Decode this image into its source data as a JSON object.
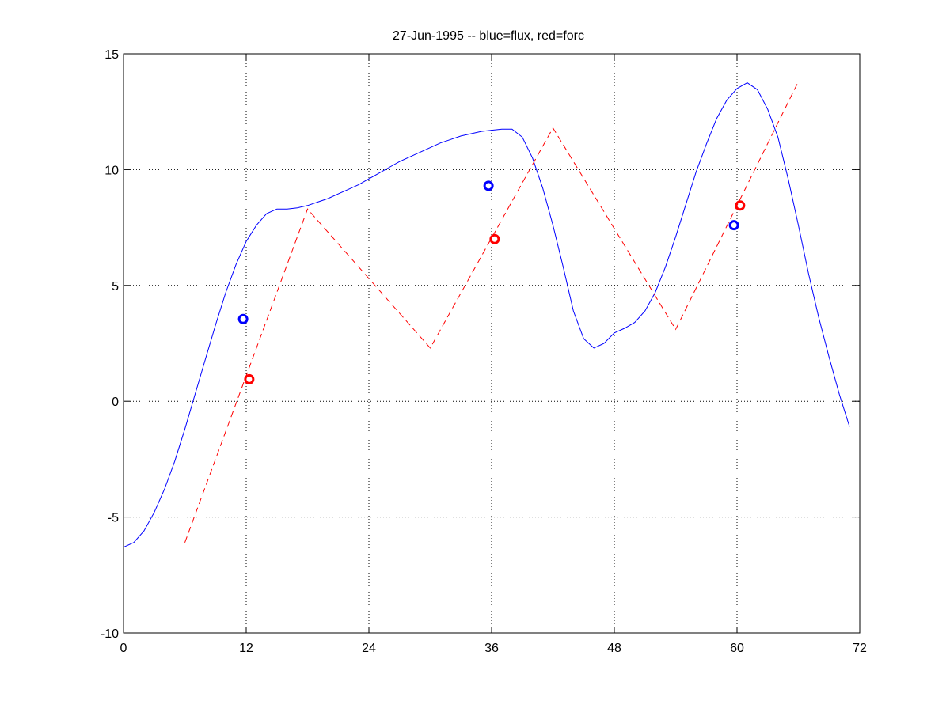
{
  "chart_data": {
    "type": "line",
    "title": "27-Jun-1995 -- blue=flux, red=forc",
    "xlabel": "",
    "ylabel": "",
    "xlim": [
      0,
      72
    ],
    "ylim": [
      -10,
      15
    ],
    "xticks": [
      0,
      12,
      24,
      36,
      48,
      60,
      72
    ],
    "yticks": [
      -10,
      -5,
      0,
      5,
      10,
      15
    ],
    "xgrid_at": [
      12,
      24,
      36,
      48,
      60
    ],
    "ygrid_at": [
      -5,
      0,
      5,
      10
    ],
    "grid": true,
    "series": [
      {
        "color": "#0000ff",
        "style": "solid",
        "x": [
          0,
          1,
          2,
          3,
          4,
          5,
          6,
          7,
          8,
          9,
          10,
          11,
          12,
          13,
          14,
          15,
          16,
          17,
          18,
          19,
          20,
          21,
          22,
          23,
          24,
          25,
          26,
          27,
          28,
          29,
          30,
          31,
          32,
          33,
          34,
          35,
          36,
          37,
          38,
          39,
          40,
          41,
          42,
          43,
          44,
          45,
          46,
          47,
          48,
          49,
          50,
          51,
          52,
          53,
          54,
          55,
          56,
          57,
          58,
          59,
          60,
          61,
          62,
          63,
          64,
          65,
          66,
          67,
          68,
          69,
          70,
          71
        ],
        "y": [
          -6.3,
          -6.1,
          -5.6,
          -4.8,
          -3.8,
          -2.6,
          -1.2,
          0.3,
          1.8,
          3.3,
          4.7,
          5.9,
          6.9,
          7.6,
          8.1,
          8.3,
          8.3,
          8.35,
          8.45,
          8.6,
          8.75,
          8.95,
          9.15,
          9.35,
          9.6,
          9.85,
          10.1,
          10.35,
          10.55,
          10.75,
          10.95,
          11.15,
          11.3,
          11.45,
          11.55,
          11.65,
          11.7,
          11.75,
          11.75,
          11.4,
          10.5,
          9.2,
          7.6,
          5.8,
          3.9,
          2.7,
          2.3,
          2.5,
          2.95,
          3.15,
          3.4,
          3.9,
          4.7,
          5.8,
          7.1,
          8.5,
          9.9,
          11.1,
          12.2,
          13.0,
          13.5,
          13.75,
          13.45,
          12.6,
          11.4,
          9.6,
          7.6,
          5.5,
          3.6,
          1.9,
          0.3,
          -1.1
        ]
      },
      {
        "color": "#ff0000",
        "style": "dashed",
        "x": [
          6,
          18,
          30,
          42,
          54,
          66
        ],
        "y": [
          -6.1,
          8.3,
          2.3,
          11.8,
          3.1,
          13.8
        ]
      }
    ],
    "markers": [
      {
        "color": "#0000ff",
        "shape": "circle",
        "x": 11.7,
        "y": 3.55
      },
      {
        "color": "#ff0000",
        "shape": "circle",
        "x": 12.3,
        "y": 0.95
      },
      {
        "color": "#0000ff",
        "shape": "circle",
        "x": 35.7,
        "y": 9.3
      },
      {
        "color": "#ff0000",
        "shape": "circle",
        "x": 36.3,
        "y": 7.0
      },
      {
        "color": "#0000ff",
        "shape": "circle",
        "x": 59.7,
        "y": 7.6
      },
      {
        "color": "#ff0000",
        "shape": "circle",
        "x": 60.3,
        "y": 8.45
      }
    ]
  }
}
